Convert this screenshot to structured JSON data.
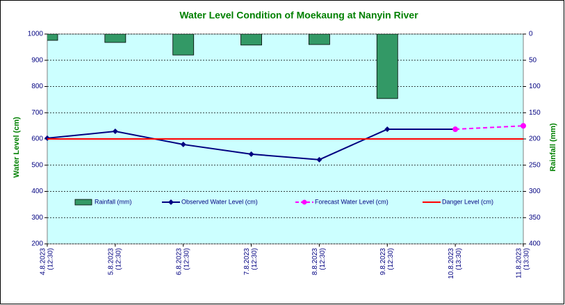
{
  "chart_data": {
    "type": "combo",
    "title": "Water Level Condition of Moekaung at Nanyin River",
    "y_label": "Water Level (cm)",
    "y2_label": "Rainfall (mm)",
    "categories": [
      [
        "4.8.2023",
        "(12:30)"
      ],
      [
        "5.8.2023",
        "(12:30)"
      ],
      [
        "6.8.2023",
        "(12:30)"
      ],
      [
        "7.8.2023",
        "(12:30)"
      ],
      [
        "8.8.2023",
        "(12:30)"
      ],
      [
        "9.8.2023",
        "(12:30)"
      ],
      [
        "10.8.2023",
        "(13:30)"
      ],
      [
        "11.8.2023",
        "(13:30)"
      ]
    ],
    "ylim": [
      200,
      1000
    ],
    "yticks": [
      200,
      300,
      400,
      500,
      600,
      700,
      800,
      900,
      1000
    ],
    "y2lim": [
      0,
      400
    ],
    "y2ticks": [
      0,
      50,
      100,
      150,
      200,
      250,
      300,
      350,
      400
    ],
    "y2_inverted": true,
    "grid": true,
    "legend": "inside",
    "series": [
      {
        "name": "Rainfall (mm)",
        "type": "bar",
        "axis": "y2",
        "color": "#339966",
        "values": [
          12,
          16,
          40,
          21,
          20,
          123,
          0,
          null
        ]
      },
      {
        "name": "Observed Water Level (cm)",
        "type": "line",
        "marker": "diamond",
        "color": "#000080",
        "values": [
          603,
          629,
          579,
          542,
          521,
          637,
          637,
          null
        ]
      },
      {
        "name": "Forecast Water Level (cm)",
        "type": "line",
        "marker": "circle",
        "dashed": true,
        "color": "#ff00ff",
        "values": [
          null,
          null,
          null,
          null,
          null,
          null,
          637,
          650
        ]
      },
      {
        "name": "Danger Level (cm)",
        "type": "line",
        "color": "#ff0000",
        "values": [
          600,
          600,
          600,
          600,
          600,
          600,
          600,
          600
        ]
      }
    ]
  }
}
